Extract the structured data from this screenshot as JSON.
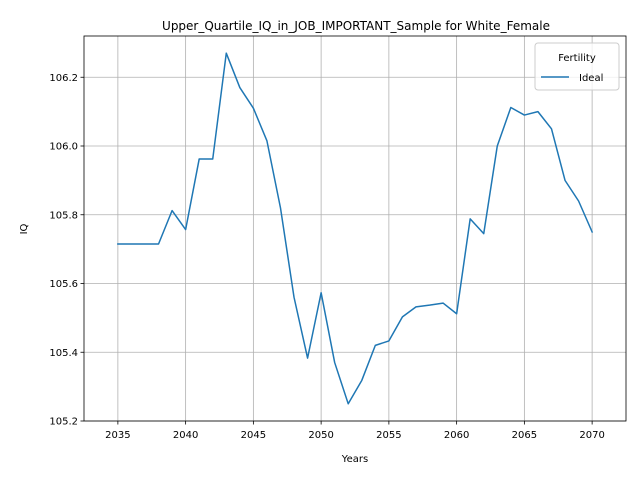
{
  "chart_data": {
    "type": "line",
    "title": "Upper_Quartile_IQ_in_JOB_IMPORTANT_Sample for White_Female",
    "xlabel": "Years",
    "ylabel": "IQ",
    "xlim": [
      2032.5,
      2072.5
    ],
    "ylim": [
      105.2,
      106.32
    ],
    "xticks": [
      2035,
      2040,
      2045,
      2050,
      2055,
      2060,
      2065,
      2070
    ],
    "yticks": [
      105.2,
      105.4,
      105.6,
      105.8,
      106.0,
      106.2
    ],
    "ytick_labels": [
      "105.2",
      "105.4",
      "105.6",
      "105.8",
      "106.0",
      "106.2"
    ],
    "grid": true,
    "legend": {
      "title": "Fertility",
      "placement": "top-right"
    },
    "series": [
      {
        "name": "Ideal",
        "color": "#1f77b4",
        "x": [
          2035,
          2036,
          2037,
          2038,
          2039,
          2040,
          2041,
          2042,
          2043,
          2044,
          2045,
          2046,
          2047,
          2048,
          2049,
          2050,
          2051,
          2052,
          2053,
          2054,
          2055,
          2056,
          2057,
          2058,
          2059,
          2060,
          2061,
          2062,
          2063,
          2064,
          2065,
          2066,
          2067,
          2068,
          2069,
          2070
        ],
        "values": [
          105.715,
          105.715,
          105.715,
          105.715,
          105.812,
          105.757,
          105.962,
          105.962,
          106.27,
          106.17,
          106.11,
          106.015,
          105.82,
          105.56,
          105.383,
          105.573,
          105.37,
          105.25,
          105.318,
          105.42,
          105.433,
          105.503,
          105.532,
          105.537,
          105.543,
          105.512,
          105.788,
          105.745,
          106.0,
          106.112,
          106.09,
          106.1,
          106.05,
          105.9,
          105.84,
          105.75
        ]
      }
    ]
  }
}
